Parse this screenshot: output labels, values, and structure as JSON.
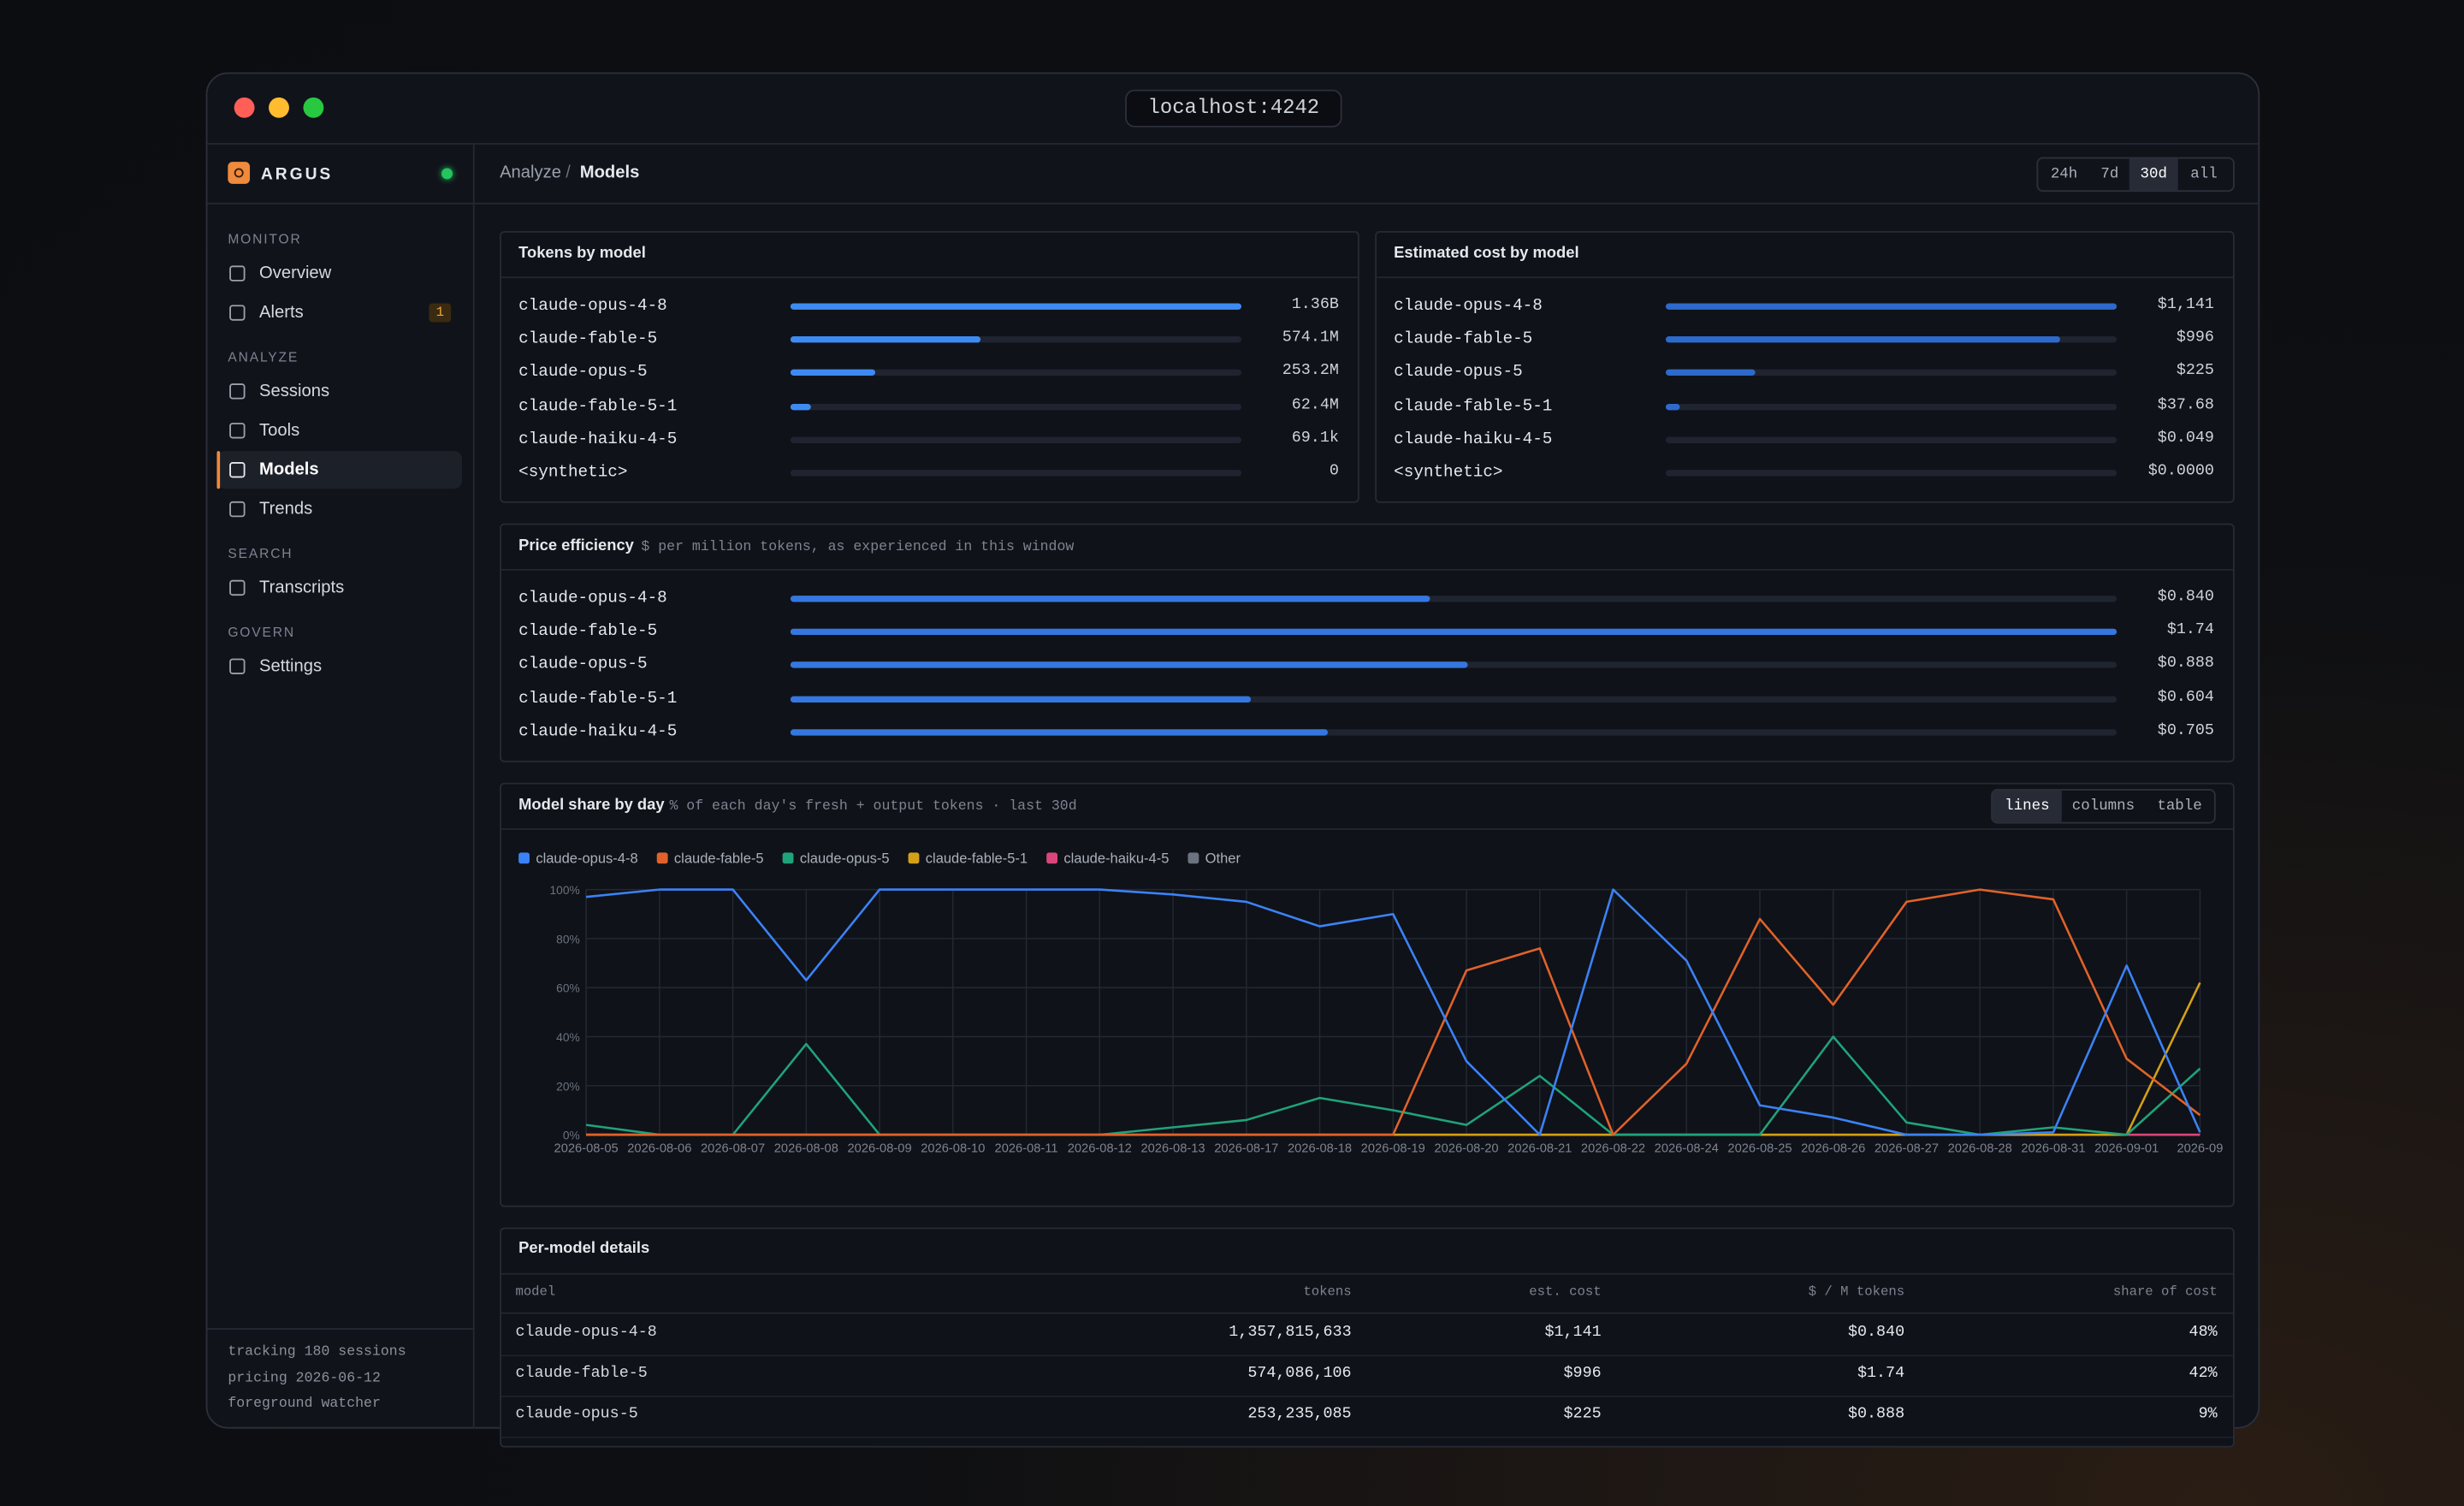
{
  "window": {
    "url": "localhost:4242"
  },
  "sidebar": {
    "brand": "ARGUS",
    "sections": [
      {
        "title": "MONITOR",
        "items": [
          {
            "label": "Overview"
          },
          {
            "label": "Alerts",
            "badge": 1
          }
        ]
      },
      {
        "title": "ANALYZE",
        "items": [
          {
            "label": "Sessions"
          },
          {
            "label": "Tools"
          },
          {
            "label": "Models",
            "active": true
          },
          {
            "label": "Trends"
          }
        ]
      },
      {
        "title": "SEARCH",
        "items": [
          {
            "label": "Transcripts"
          }
        ]
      },
      {
        "title": "GOVERN",
        "items": [
          {
            "label": "Settings"
          }
        ]
      }
    ],
    "footer": [
      "tracking 180 sessions",
      "pricing 2026-06-12",
      "foreground watcher"
    ]
  },
  "header": {
    "breadcrumb": [
      "Analyze",
      "Models"
    ],
    "separator": "/",
    "ranges": [
      "24h",
      "7d",
      "30d",
      "all"
    ],
    "active_range": 2
  },
  "tokens_panel": {
    "title": "Tokens by model",
    "rows": [
      {
        "model": "claude-opus-4-8",
        "value": 1357815633,
        "value_label": "1.36B"
      },
      {
        "model": "claude-fable-5",
        "value": 574086106,
        "value_label": "574.1M"
      },
      {
        "model": "claude-opus-5",
        "value": 253235085,
        "value_label": "253.2M"
      },
      {
        "model": "claude-fable-5-1",
        "value": 62400000,
        "value_label": "62.4M"
      },
      {
        "model": "claude-haiku-4-5",
        "value": 69100,
        "value_label": "69.1k"
      },
      {
        "model": "<synthetic>",
        "value": 0
      }
    ]
  },
  "cost_panel": {
    "title": "Estimated cost by model",
    "rows": [
      {
        "model": "claude-opus-4-8",
        "value": 1141,
        "value_label": "$1,141"
      },
      {
        "model": "claude-fable-5",
        "value": 996,
        "value_label": "$996"
      },
      {
        "model": "claude-opus-5",
        "value": 225,
        "value_label": "$225"
      },
      {
        "model": "claude-fable-5-1",
        "value": 37.68,
        "value_label": "$37.68"
      },
      {
        "model": "claude-haiku-4-5",
        "value": 0.049,
        "value_label": "$0.049"
      },
      {
        "model": "<synthetic>",
        "value": 0,
        "value_label": "$0.0000"
      }
    ]
  },
  "price_panel": {
    "title": "Price efficiency",
    "subtitle": "$ per million tokens, as experienced in this window",
    "rows": [
      {
        "model": "claude-opus-4-8",
        "value": 0.84,
        "value_label": "$0.840"
      },
      {
        "model": "claude-fable-5",
        "value": 1.74,
        "value_label": "$1.74"
      },
      {
        "model": "claude-opus-5",
        "value": 0.888,
        "value_label": "$0.888"
      },
      {
        "model": "claude-fable-5-1",
        "value": 0.604,
        "value_label": "$0.604"
      },
      {
        "model": "claude-haiku-4-5",
        "value": 0.705,
        "value_label": "$0.705"
      }
    ]
  },
  "chart_data": {
    "type": "line",
    "title": "Model share by day",
    "subtitle": "% of each day's fresh + output tokens · last 30d",
    "views": [
      "lines",
      "columns",
      "table"
    ],
    "active_view": 0,
    "legend": "top-left",
    "grid": true,
    "categories": [
      "2026-08-05",
      "2026-08-06",
      "2026-08-07",
      "2026-08-08",
      "2026-08-09",
      "2026-08-10",
      "2026-08-11",
      "2026-08-12",
      "2026-08-13",
      "2026-08-17",
      "2026-08-18",
      "2026-08-19",
      "2026-08-20",
      "2026-08-21",
      "2026-08-22",
      "2026-08-24",
      "2026-08-25",
      "2026-08-26",
      "2026-08-27",
      "2026-08-28",
      "2026-08-31",
      "2026-09-01",
      "2026-09"
    ],
    "ylim": [
      0,
      100
    ],
    "yticks": [
      {
        "value": 0,
        "label": "0%"
      },
      {
        "value": 20,
        "label": "20%"
      },
      {
        "value": 40,
        "label": "40%"
      },
      {
        "value": 60,
        "label": "60%"
      },
      {
        "value": 80,
        "label": "80%"
      },
      {
        "value": 100,
        "label": "100%"
      }
    ],
    "series": [
      {
        "name": "claude-opus-4-8",
        "color": "#3b82f6",
        "values": [
          97,
          100,
          100,
          63,
          100,
          100,
          100,
          100,
          98,
          95,
          85,
          90,
          30,
          0,
          100,
          71,
          12,
          7,
          0,
          0,
          1,
          69,
          1
        ]
      },
      {
        "name": "claude-fable-5",
        "color": "#e0622a",
        "values": [
          0,
          0,
          0,
          0,
          0,
          0,
          0,
          0,
          0,
          0,
          0,
          0,
          67,
          76,
          0,
          29,
          88,
          53,
          95,
          100,
          96,
          31,
          8
        ]
      },
      {
        "name": "claude-opus-5",
        "color": "#1fa37a",
        "values": [
          4,
          0,
          0,
          37,
          0,
          0,
          0,
          0,
          3,
          6,
          15,
          10,
          4,
          24,
          0,
          0,
          0,
          40,
          5,
          0,
          3,
          0,
          27
        ]
      },
      {
        "name": "claude-fable-5-1",
        "color": "#d4a017",
        "values": [
          0,
          0,
          0,
          0,
          0,
          0,
          0,
          0,
          0,
          0,
          0,
          0,
          0,
          0,
          0,
          0,
          0,
          0,
          0,
          0,
          0,
          0,
          62
        ]
      },
      {
        "name": "claude-haiku-4-5",
        "color": "#d9467a",
        "values": [
          0,
          0,
          0,
          0,
          0,
          0,
          0,
          0,
          0,
          0,
          0,
          0,
          0,
          0,
          0,
          0,
          0,
          0,
          0,
          0,
          0,
          0,
          0
        ]
      },
      {
        "name": "Other",
        "color": "#6b7280",
        "values": [
          0,
          0,
          0,
          0,
          0,
          0,
          0,
          0,
          0,
          0,
          0,
          0,
          0,
          0,
          0,
          0,
          0,
          0,
          0,
          0,
          0,
          0,
          0
        ]
      }
    ]
  },
  "details": {
    "title": "Per-model details",
    "columns": [
      "model",
      "tokens",
      "est. cost",
      "$ / M tokens",
      "share of cost"
    ],
    "rows": [
      [
        "claude-opus-4-8",
        "1,357,815,633",
        "$1,141",
        "$0.840",
        "48%"
      ],
      [
        "claude-fable-5",
        "574,086,106",
        "$996",
        "$1.74",
        "42%"
      ],
      [
        "claude-opus-5",
        "253,235,085",
        "$225",
        "$0.888",
        "9%"
      ]
    ]
  }
}
